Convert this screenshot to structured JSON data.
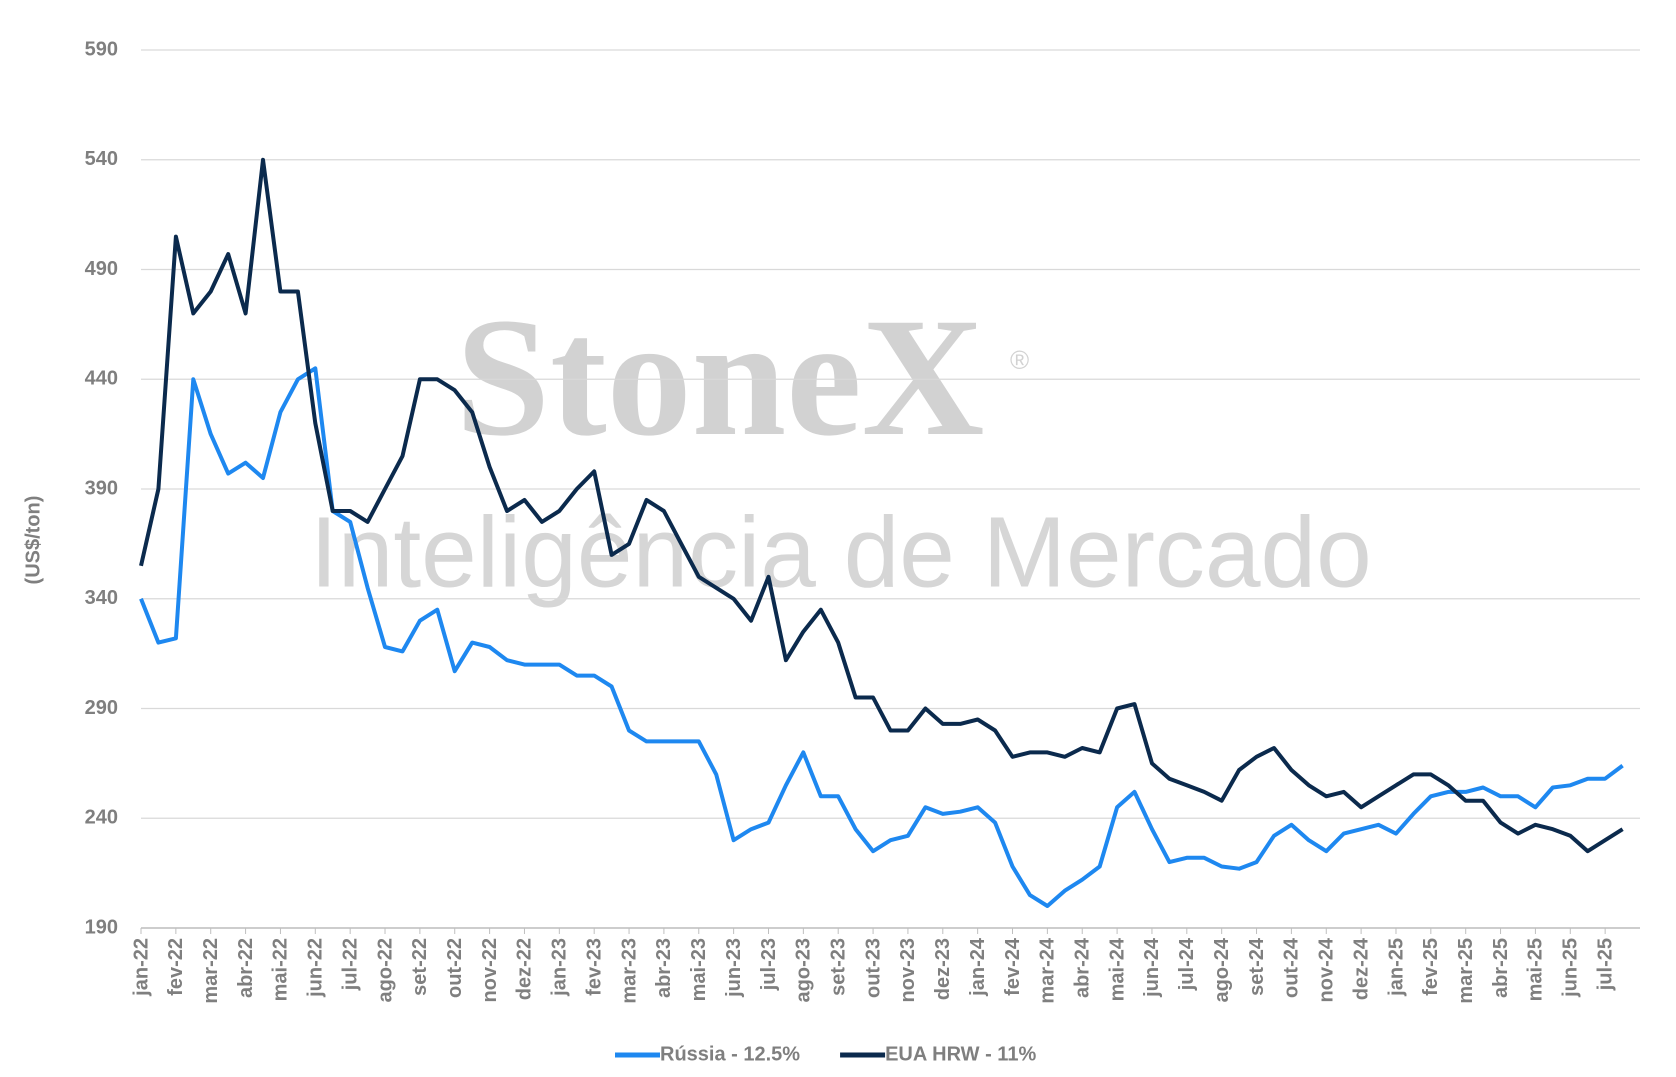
{
  "chart_data": {
    "type": "line",
    "y_label": "(US$/ton)",
    "categories": [
      "jan-22",
      null,
      "fev-22",
      null,
      "mar-22",
      null,
      "abr-22",
      null,
      "mai-22",
      null,
      "jun-22",
      null,
      "jul-22",
      null,
      "ago-22",
      null,
      "set-22",
      null,
      "out-22",
      null,
      "nov-22",
      null,
      "dez-22",
      null,
      "jan-23",
      null,
      "fev-23",
      null,
      "mar-23",
      null,
      "abr-23",
      null,
      "mai-23",
      null,
      "jun-23",
      null,
      "jul-23",
      null,
      "ago-23",
      null,
      "set-23",
      null,
      "out-23",
      null,
      "nov-23",
      null,
      "dez-23",
      null,
      "jan-24",
      null,
      "fev-24",
      null,
      "mar-24",
      null,
      "abr-24",
      null,
      "mai-24",
      null,
      "jun-24",
      null,
      "jul-24",
      null,
      "ago-24",
      null,
      "set-24",
      null,
      "out-24",
      null,
      "nov-24",
      null,
      "dez-24",
      null,
      "jan-25",
      null,
      "fev-25",
      null,
      "mar-25",
      null,
      "abr-25",
      null,
      "mai-25",
      null,
      "jun-25",
      null,
      "jul-25",
      null
    ],
    "series": [
      {
        "name": "Rússia - 12.5%",
        "color": "#1e88f0",
        "values": [
          340,
          320,
          322,
          440,
          415,
          397,
          402,
          395,
          425,
          440,
          445,
          380,
          375,
          345,
          318,
          316,
          330,
          335,
          307,
          320,
          318,
          312,
          310,
          310,
          310,
          305,
          305,
          300,
          280,
          275,
          275,
          275,
          275,
          260,
          230,
          235,
          238,
          255,
          270,
          250,
          250,
          235,
          225,
          230,
          232,
          245,
          242,
          243,
          245,
          238,
          218,
          205,
          200,
          207,
          212,
          218,
          245,
          252,
          235,
          220,
          222,
          222,
          218,
          217,
          220,
          232,
          237,
          230,
          225,
          233,
          235,
          237,
          233,
          242,
          250,
          252,
          252,
          254,
          250,
          250,
          245,
          254,
          255,
          258,
          258,
          264
        ]
      },
      {
        "name": "EUA HRW - 11%",
        "color": "#0b2a4d",
        "values": [
          355,
          390,
          505,
          470,
          480,
          497,
          470,
          540,
          480,
          480,
          420,
          380,
          380,
          375,
          390,
          405,
          440,
          440,
          435,
          425,
          400,
          380,
          385,
          375,
          380,
          390,
          398,
          360,
          365,
          385,
          380,
          365,
          350,
          345,
          340,
          330,
          350,
          312,
          325,
          335,
          320,
          295,
          295,
          280,
          280,
          290,
          283,
          283,
          285,
          280,
          268,
          270,
          270,
          268,
          272,
          270,
          290,
          292,
          265,
          258,
          255,
          252,
          248,
          262,
          268,
          272,
          262,
          255,
          250,
          252,
          245,
          250,
          255,
          260,
          260,
          255,
          248,
          248,
          238,
          233,
          237,
          235,
          232,
          225,
          230,
          235
        ]
      }
    ],
    "ylim": [
      190,
      590
    ],
    "yticks": [
      190,
      240,
      290,
      340,
      390,
      440,
      490,
      540,
      590
    ],
    "grid": true,
    "legend": "bottom"
  },
  "watermark": {
    "brand": "StoneX",
    "mark": "®",
    "tagline": "Inteligência de Mercado"
  }
}
